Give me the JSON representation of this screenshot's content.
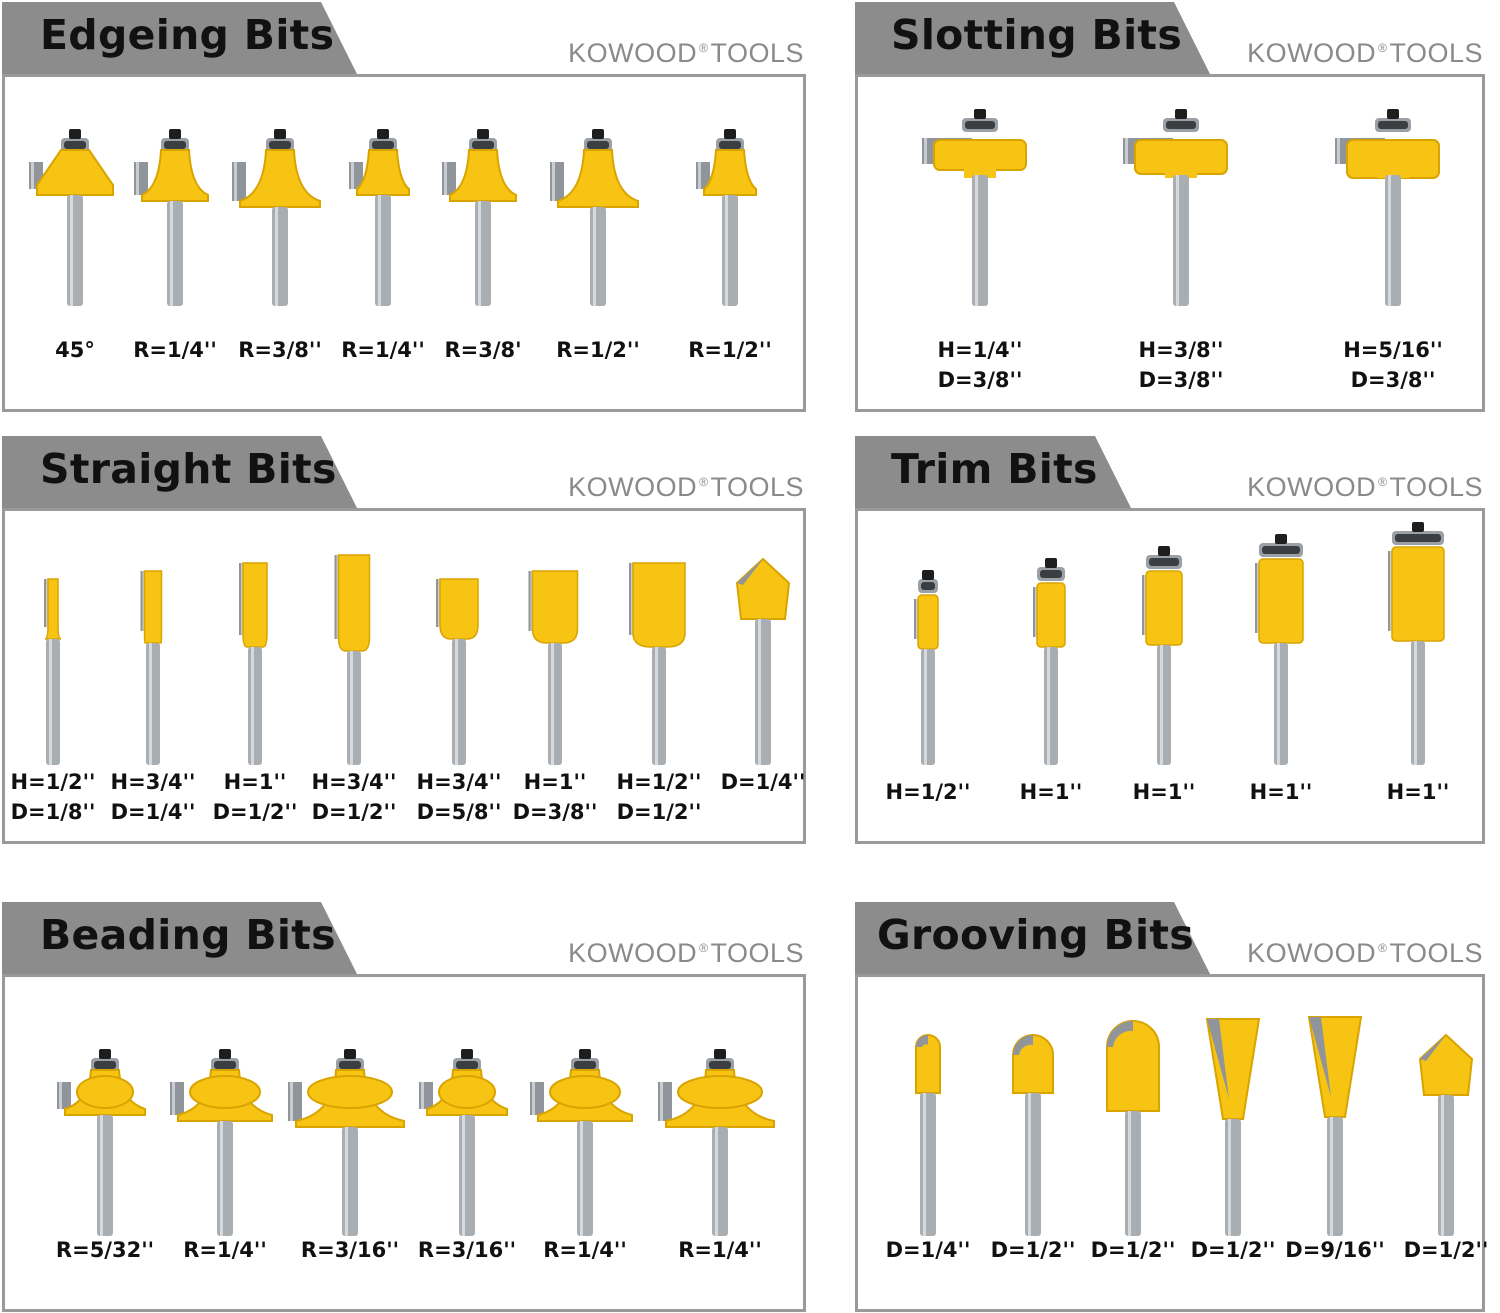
{
  "brand": {
    "name_left": "KOWOOD",
    "reg": "®",
    "name_right": "TOOLS"
  },
  "colors": {
    "yellow": "#f7c414",
    "yellow_dark": "#d9a300",
    "steel": "#a9aeb3",
    "tab": "#8c8c8c",
    "border": "#9a9a9a"
  },
  "sections": [
    {
      "title": "Edgeing Bits",
      "items": [
        {
          "lines": [
            "45°"
          ]
        },
        {
          "lines": [
            "R=1/4''"
          ]
        },
        {
          "lines": [
            "R=3/8''"
          ]
        },
        {
          "lines": [
            "R=1/4''"
          ]
        },
        {
          "lines": [
            "R=3/8'"
          ]
        },
        {
          "lines": [
            "R=1/2''"
          ]
        },
        {
          "lines": [
            "R=1/2''"
          ]
        }
      ]
    },
    {
      "title": "Slotting Bits",
      "items": [
        {
          "lines": [
            "H=1/4''",
            "D=3/8''"
          ]
        },
        {
          "lines": [
            "H=3/8''",
            "D=3/8''"
          ]
        },
        {
          "lines": [
            "H=5/16''",
            "D=3/8''"
          ]
        }
      ]
    },
    {
      "title": "Straight Bits",
      "items": [
        {
          "lines": [
            "H=1/2''",
            "D=1/8''"
          ]
        },
        {
          "lines": [
            "H=3/4''",
            "D=1/4''"
          ]
        },
        {
          "lines": [
            "H=1''",
            "D=1/2''"
          ]
        },
        {
          "lines": [
            "H=3/4''",
            "D=1/2''"
          ]
        },
        {
          "lines": [
            "H=3/4''",
            "D=5/8''"
          ]
        },
        {
          "lines": [
            "H=1''",
            "D=3/8''"
          ]
        },
        {
          "lines": [
            "H=1/2''",
            "D=1/2''"
          ]
        },
        {
          "lines": [
            "D=1/4''"
          ]
        }
      ]
    },
    {
      "title": "Trim Bits",
      "items": [
        {
          "lines": [
            "H=1/2''"
          ]
        },
        {
          "lines": [
            "H=1''"
          ]
        },
        {
          "lines": [
            "H=1''"
          ]
        },
        {
          "lines": [
            "H=1''"
          ]
        },
        {
          "lines": [
            "H=1''"
          ]
        }
      ]
    },
    {
      "title": "Beading Bits",
      "items": [
        {
          "lines": [
            "R=5/32''"
          ]
        },
        {
          "lines": [
            "R=1/4''"
          ]
        },
        {
          "lines": [
            "R=3/16''"
          ]
        },
        {
          "lines": [
            "R=3/16''"
          ]
        },
        {
          "lines": [
            "R=1/4''"
          ]
        },
        {
          "lines": [
            "R=1/4''"
          ]
        }
      ]
    },
    {
      "title": "Grooving Bits",
      "items": [
        {
          "lines": [
            "D=1/4''"
          ]
        },
        {
          "lines": [
            "D=1/2''"
          ]
        },
        {
          "lines": [
            "D=1/2''"
          ]
        },
        {
          "lines": [
            "D=1/2''"
          ]
        },
        {
          "lines": [
            "D=9/16''"
          ]
        },
        {
          "lines": [
            "D=1/2''"
          ]
        }
      ]
    }
  ]
}
